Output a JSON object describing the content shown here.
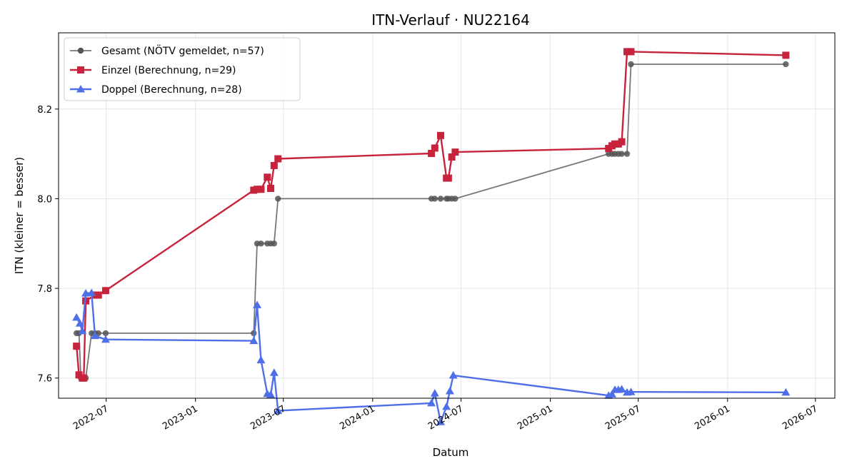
{
  "chart_data": {
    "type": "line",
    "title": "ITN-Verlauf · NU22164",
    "xlabel": "Datum",
    "ylabel": "ITN  (kleiner = besser)",
    "x_type": "date",
    "xlim": [
      "2022-03-25",
      "2026-08-10"
    ],
    "ylim": [
      7.555,
      8.37
    ],
    "x_ticks": [
      "2022-07-01",
      "2023-01-01",
      "2023-07-01",
      "2024-01-01",
      "2024-07-01",
      "2025-01-01",
      "2025-07-01",
      "2026-01-01",
      "2026-07-01"
    ],
    "x_tick_labels": [
      "2022-07",
      "2023-01",
      "2023-07",
      "2024-01",
      "2024-07",
      "2025-01",
      "2025-07",
      "2026-01",
      "2026-07"
    ],
    "y_ticks": [
      7.6,
      7.8,
      8.0,
      8.2
    ],
    "y_tick_labels": [
      "7.6",
      "7.8",
      "8.0",
      "8.2"
    ],
    "grid": true,
    "legend_position": "top-left",
    "series": [
      {
        "name": "Gesamt (NÖTV gemeldet, n=57)",
        "color": "#555555",
        "marker": "circle",
        "points": [
          [
            "2022-05-01",
            7.7
          ],
          [
            "2022-05-06",
            7.7
          ],
          [
            "2022-05-10",
            7.6
          ],
          [
            "2022-05-13",
            7.6
          ],
          [
            "2022-05-16",
            7.6
          ],
          [
            "2022-05-20",
            7.6
          ],
          [
            "2022-06-01",
            7.7
          ],
          [
            "2022-06-08",
            7.7
          ],
          [
            "2022-06-15",
            7.7
          ],
          [
            "2022-06-30",
            7.7
          ],
          [
            "2023-05-01",
            7.7
          ],
          [
            "2023-05-08",
            7.9
          ],
          [
            "2023-05-16",
            7.9
          ],
          [
            "2023-05-29",
            7.9
          ],
          [
            "2023-06-05",
            7.9
          ],
          [
            "2023-06-12",
            7.9
          ],
          [
            "2023-06-20",
            8.0
          ],
          [
            "2024-05-01",
            8.0
          ],
          [
            "2024-05-08",
            8.0
          ],
          [
            "2024-05-20",
            8.0
          ],
          [
            "2024-06-01",
            8.0
          ],
          [
            "2024-06-05",
            8.0
          ],
          [
            "2024-06-12",
            8.0
          ],
          [
            "2024-06-19",
            8.0
          ],
          [
            "2025-05-01",
            8.1
          ],
          [
            "2025-05-08",
            8.1
          ],
          [
            "2025-05-14",
            8.1
          ],
          [
            "2025-05-21",
            8.1
          ],
          [
            "2025-05-28",
            8.1
          ],
          [
            "2025-06-08",
            8.1
          ],
          [
            "2025-06-16",
            8.3
          ],
          [
            "2026-05-01",
            8.3
          ]
        ]
      },
      {
        "name": "Einzel (Berechnung, n=29)",
        "color": "#c8233d",
        "marker": "square",
        "points": [
          [
            "2022-05-01",
            7.671
          ],
          [
            "2022-05-06",
            7.607
          ],
          [
            "2022-05-13",
            7.6
          ],
          [
            "2022-05-16",
            7.6
          ],
          [
            "2022-05-20",
            7.772
          ],
          [
            "2022-06-08",
            7.785
          ],
          [
            "2022-06-15",
            7.785
          ],
          [
            "2022-06-30",
            7.795
          ],
          [
            "2023-05-01",
            8.019
          ],
          [
            "2023-05-08",
            8.021
          ],
          [
            "2023-05-16",
            8.021
          ],
          [
            "2023-05-29",
            8.048
          ],
          [
            "2023-06-05",
            8.023
          ],
          [
            "2023-06-12",
            8.074
          ],
          [
            "2023-06-20",
            8.089
          ],
          [
            "2024-05-01",
            8.101
          ],
          [
            "2024-05-08",
            8.113
          ],
          [
            "2024-05-20",
            8.141
          ],
          [
            "2024-06-01",
            8.046
          ],
          [
            "2024-06-05",
            8.046
          ],
          [
            "2024-06-12",
            8.093
          ],
          [
            "2024-06-19",
            8.104
          ],
          [
            "2025-05-01",
            8.112
          ],
          [
            "2025-05-08",
            8.118
          ],
          [
            "2025-05-14",
            8.122
          ],
          [
            "2025-05-21",
            8.122
          ],
          [
            "2025-05-28",
            8.127
          ],
          [
            "2025-06-08",
            8.328
          ],
          [
            "2025-06-16",
            8.328
          ],
          [
            "2026-05-01",
            8.32
          ]
        ]
      },
      {
        "name": "Doppel (Berechnung, n=28)",
        "color": "#4f6fe8",
        "marker": "triangle",
        "points": [
          [
            "2022-05-01",
            7.735
          ],
          [
            "2022-05-08",
            7.722
          ],
          [
            "2022-05-13",
            7.705
          ],
          [
            "2022-05-20",
            7.789
          ],
          [
            "2022-06-01",
            7.79
          ],
          [
            "2022-06-08",
            7.694
          ],
          [
            "2022-06-30",
            7.686
          ],
          [
            "2023-05-01",
            7.683
          ],
          [
            "2023-05-08",
            7.763
          ],
          [
            "2023-05-16",
            7.64
          ],
          [
            "2023-05-29",
            7.565
          ],
          [
            "2023-06-05",
            7.563
          ],
          [
            "2023-06-12",
            7.612
          ],
          [
            "2023-06-20",
            7.527
          ],
          [
            "2024-05-01",
            7.544
          ],
          [
            "2024-05-08",
            7.566
          ],
          [
            "2024-05-20",
            7.502
          ],
          [
            "2024-06-01",
            7.536
          ],
          [
            "2024-06-08",
            7.571
          ],
          [
            "2024-06-15",
            7.606
          ],
          [
            "2025-05-01",
            7.561
          ],
          [
            "2025-05-08",
            7.564
          ],
          [
            "2025-05-14",
            7.574
          ],
          [
            "2025-05-21",
            7.574
          ],
          [
            "2025-05-28",
            7.575
          ],
          [
            "2025-06-08",
            7.568
          ],
          [
            "2025-06-16",
            7.569
          ],
          [
            "2026-05-01",
            7.568
          ]
        ]
      }
    ]
  }
}
